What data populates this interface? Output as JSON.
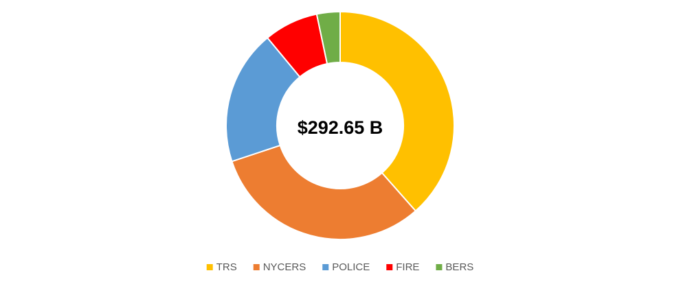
{
  "chart_data": {
    "type": "donut",
    "center_label": "$292.65 B",
    "categories": [
      "TRS",
      "NYCERS",
      "POLICE",
      "FIRE",
      "BERS"
    ],
    "values": [
      38.5,
      31.4,
      19.1,
      7.7,
      3.3
    ],
    "colors": [
      "#FFC000",
      "#ED7D31",
      "#5B9BD5",
      "#FF0000",
      "#70AD47"
    ],
    "legend": "bottom"
  }
}
